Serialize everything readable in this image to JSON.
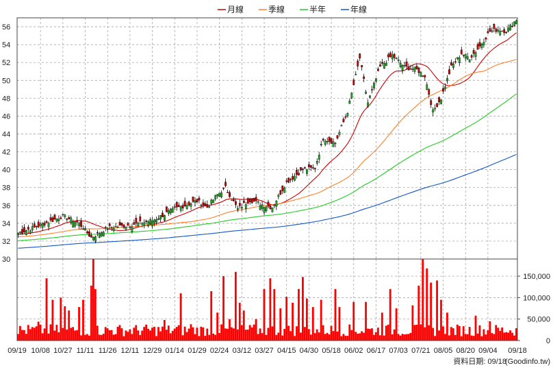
{
  "chart_data": {
    "type": "line",
    "legend": [
      {
        "label": "月線",
        "color": "#cc0000"
      },
      {
        "label": "季線",
        "color": "#ff7f27"
      },
      {
        "label": "半年",
        "color": "#22cc22"
      },
      {
        "label": "年線",
        "color": "#1155cc"
      }
    ],
    "legend_position": "top-center",
    "grid": true,
    "price_axis": {
      "ylim": [
        30,
        57
      ],
      "ticks": [
        30,
        32,
        34,
        36,
        38,
        40,
        42,
        44,
        46,
        48,
        50,
        52,
        54,
        56
      ]
    },
    "volume_axis": {
      "ylim": [
        0,
        190000
      ],
      "ticks": [
        0,
        50000,
        100000,
        150000
      ],
      "tick_labels": [
        "0",
        "50,000",
        "100,000",
        "150,000"
      ]
    },
    "x_tick_labels": [
      "09/19",
      "10/08",
      "10/27",
      "11/11",
      "11/26",
      "12/11",
      "12/29",
      "01/14",
      "01/29",
      "02/24",
      "03/12",
      "03/27",
      "04/15",
      "04/30",
      "05/18",
      "06/02",
      "06/17",
      "07/03",
      "07/21",
      "08/05",
      "08/20",
      "09/04",
      "09/18"
    ],
    "x_tick_positions": [
      0,
      11,
      22,
      33,
      44,
      55,
      66,
      77,
      88,
      99,
      110,
      121,
      132,
      143,
      154,
      165,
      176,
      187,
      198,
      209,
      220,
      231,
      242
    ],
    "bar_count": 246,
    "close_anchors": [
      [
        0,
        32.9
      ],
      [
        10,
        33.7
      ],
      [
        22,
        34.8
      ],
      [
        30,
        34.0
      ],
      [
        36,
        32.4
      ],
      [
        44,
        33.5
      ],
      [
        55,
        33.8
      ],
      [
        66,
        34.3
      ],
      [
        77,
        35.6
      ],
      [
        88,
        36.5
      ],
      [
        93,
        35.8
      ],
      [
        98,
        37.2
      ],
      [
        102,
        38.0
      ],
      [
        108,
        35.6
      ],
      [
        114,
        36.6
      ],
      [
        121,
        36.0
      ],
      [
        125,
        35.8
      ],
      [
        132,
        38.6
      ],
      [
        140,
        40.0
      ],
      [
        146,
        40.2
      ],
      [
        150,
        43.5
      ],
      [
        156,
        43.0
      ],
      [
        162,
        46.5
      ],
      [
        168,
        52.5
      ],
      [
        172,
        47.5
      ],
      [
        178,
        51.5
      ],
      [
        184,
        52.8
      ],
      [
        190,
        51.5
      ],
      [
        196,
        51.2
      ],
      [
        200,
        50.5
      ],
      [
        204,
        46.5
      ],
      [
        208,
        48.0
      ],
      [
        213,
        51.5
      ],
      [
        218,
        53.0
      ],
      [
        222,
        52.5
      ],
      [
        226,
        53.5
      ],
      [
        232,
        55.5
      ],
      [
        236,
        55.7
      ],
      [
        240,
        55.5
      ],
      [
        245,
        56.8
      ]
    ],
    "volume_spikes": [
      [
        10,
        44000
      ],
      [
        14,
        145000
      ],
      [
        17,
        95000
      ],
      [
        21,
        100000
      ],
      [
        23,
        80000
      ],
      [
        25,
        70000
      ],
      [
        30,
        78000
      ],
      [
        32,
        95000
      ],
      [
        36,
        128000
      ],
      [
        37,
        190000
      ],
      [
        38,
        120000
      ],
      [
        72,
        48000
      ],
      [
        80,
        110000
      ],
      [
        85,
        38000
      ],
      [
        95,
        115000
      ],
      [
        98,
        65000
      ],
      [
        101,
        150000
      ],
      [
        104,
        50000
      ],
      [
        107,
        160000
      ],
      [
        109,
        88000
      ],
      [
        111,
        70000
      ],
      [
        117,
        50000
      ],
      [
        121,
        120000
      ],
      [
        124,
        145000
      ],
      [
        126,
        120000
      ],
      [
        129,
        75000
      ],
      [
        132,
        102000
      ],
      [
        135,
        88000
      ],
      [
        138,
        120000
      ],
      [
        140,
        148000
      ],
      [
        142,
        98000
      ],
      [
        145,
        78000
      ],
      [
        149,
        95000
      ],
      [
        156,
        120000
      ],
      [
        158,
        78000
      ],
      [
        165,
        90000
      ],
      [
        171,
        90000
      ],
      [
        179,
        65000
      ],
      [
        183,
        120000
      ],
      [
        186,
        75000
      ],
      [
        194,
        82000
      ],
      [
        197,
        128000
      ],
      [
        199,
        190000
      ],
      [
        201,
        168000
      ],
      [
        203,
        135000
      ],
      [
        206,
        140000
      ],
      [
        208,
        95000
      ],
      [
        211,
        65000
      ],
      [
        225,
        58000
      ],
      [
        232,
        45000
      ]
    ],
    "moving_averages": [
      {
        "label": "月線",
        "color": "#cc0000",
        "window": 20
      },
      {
        "label": "季線",
        "color": "#ff7f27",
        "window": 60
      },
      {
        "label": "半年",
        "color": "#22cc22",
        "window": 120
      },
      {
        "label": "年線",
        "color": "#1155cc",
        "window": 240
      }
    ],
    "candle_up_color": "#22aa22",
    "candle_down_color": "#cc0000",
    "volume_color": "#ff0000"
  },
  "footer": {
    "date_label": "資料日期: 09/18",
    "source": "(Goodinfo.tw)"
  }
}
